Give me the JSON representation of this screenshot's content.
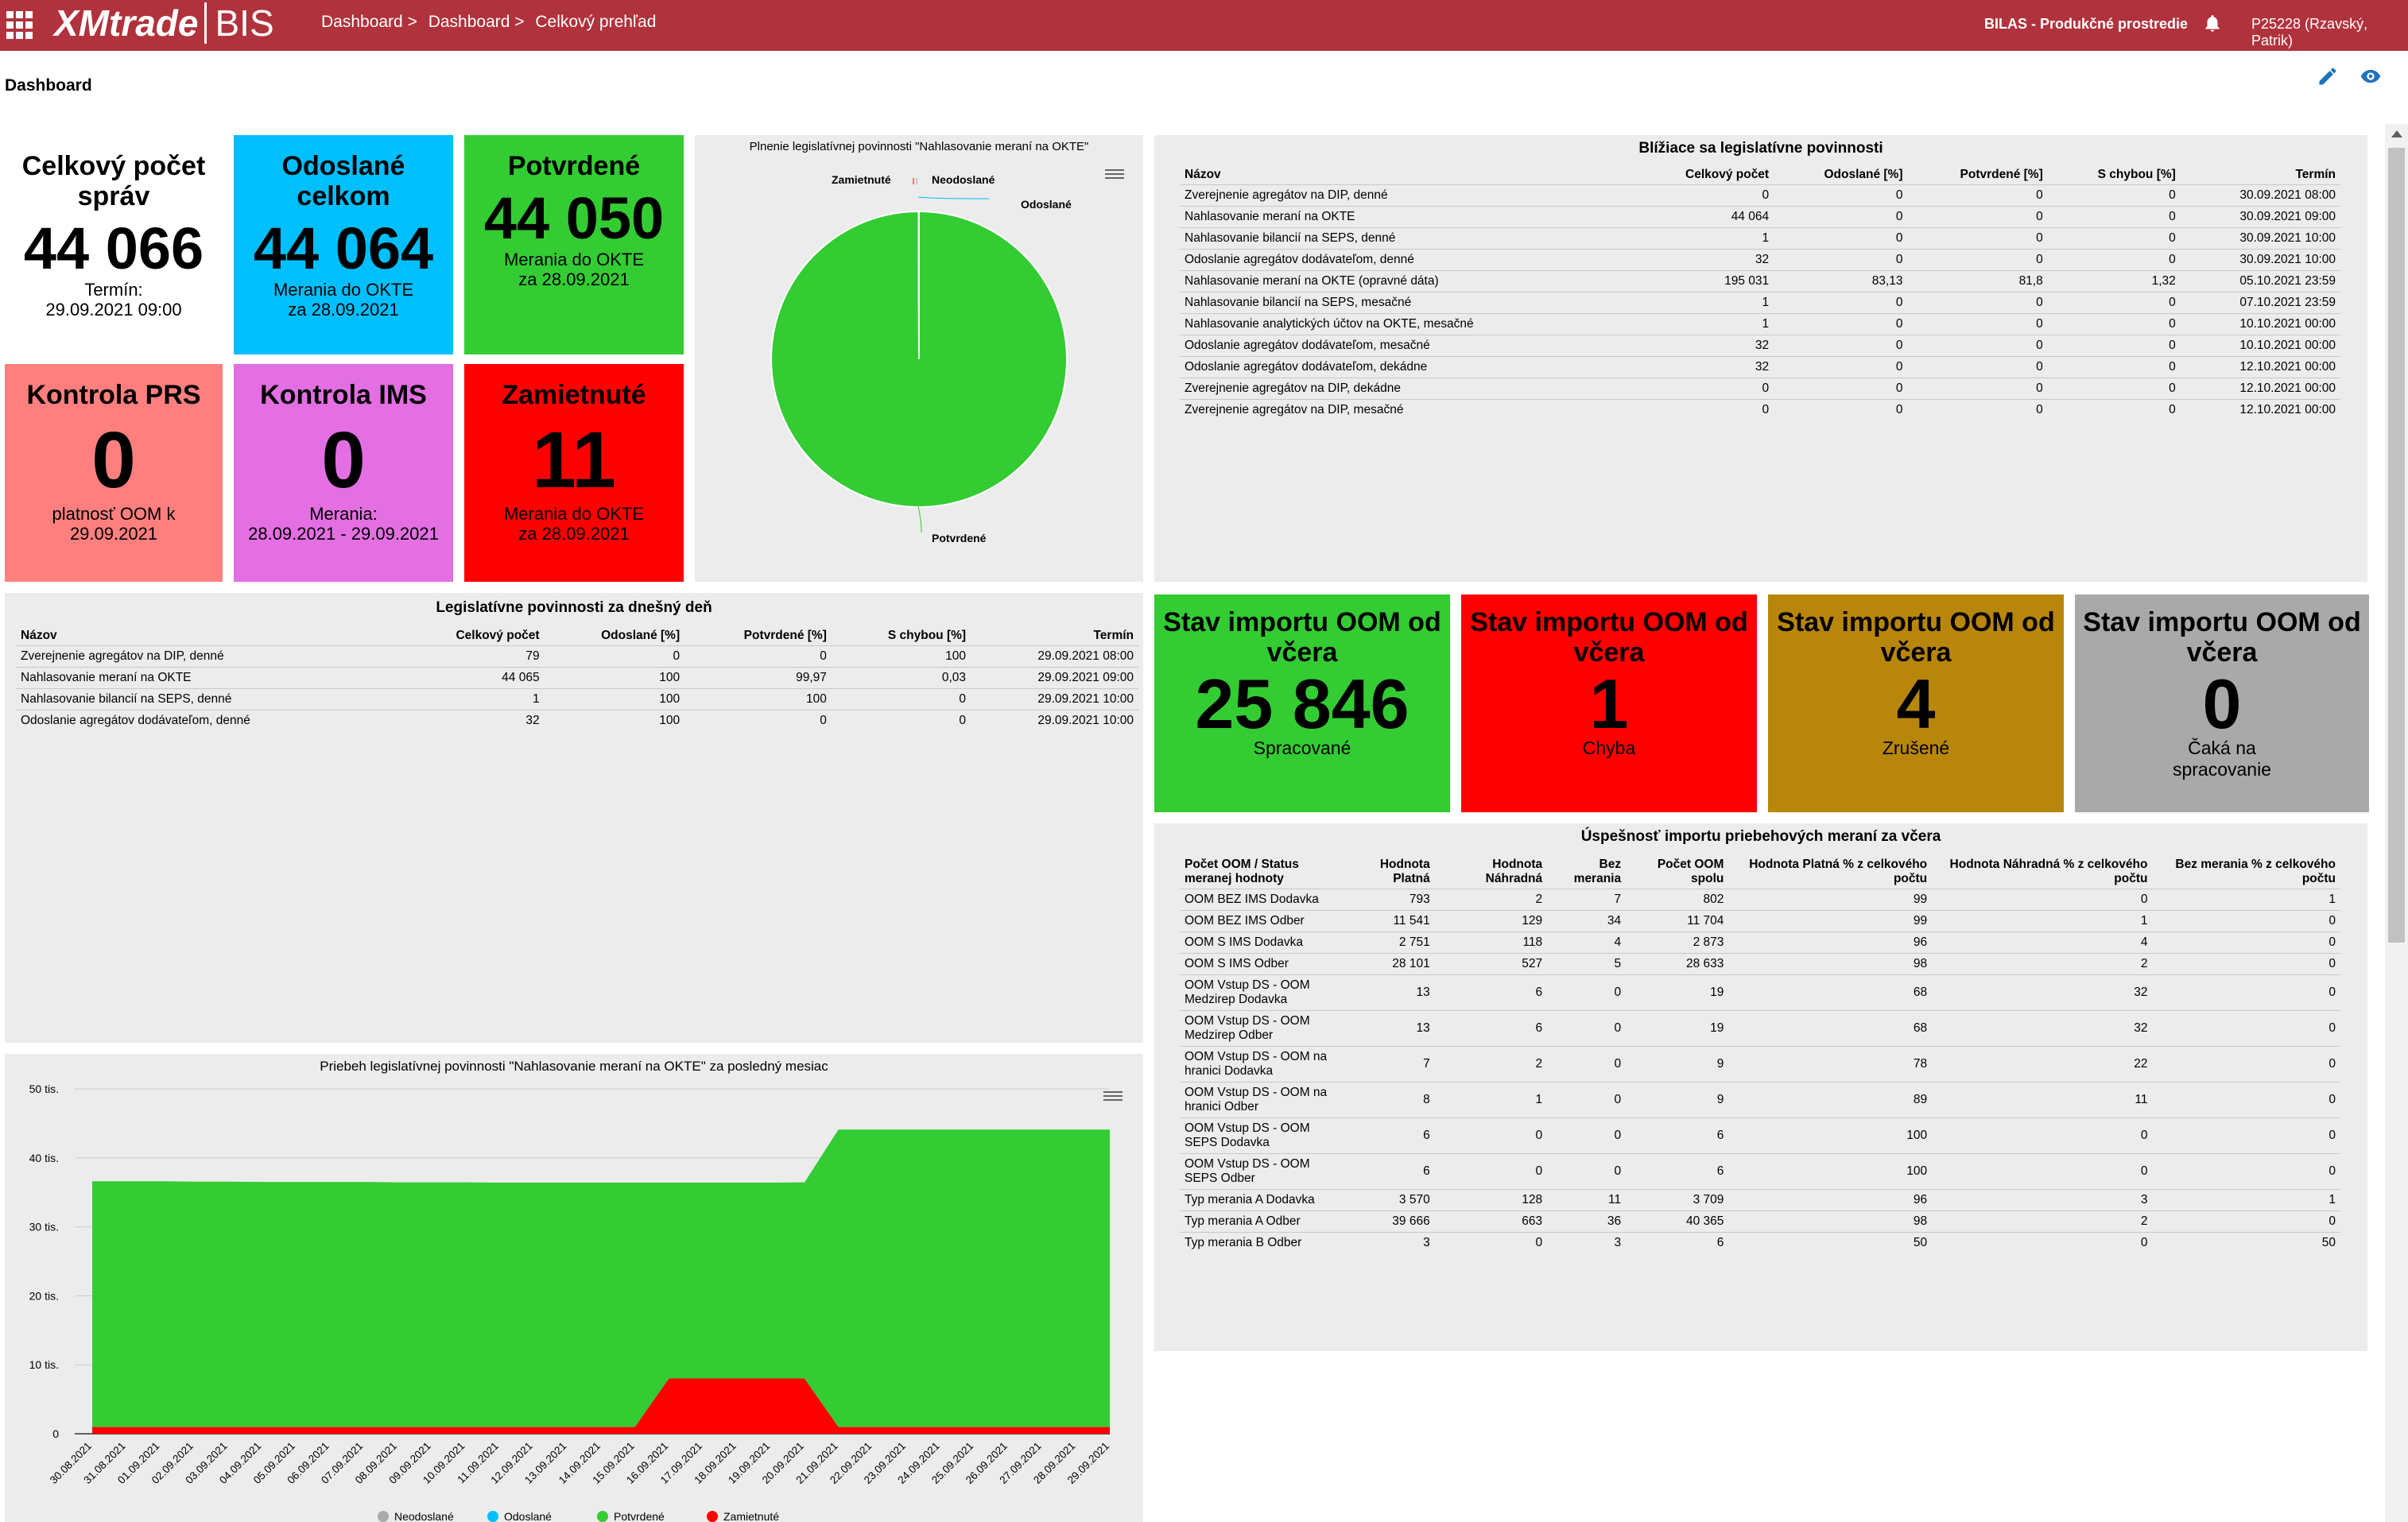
{
  "header": {
    "logo_brand": "XMtrade",
    "logo_product": "BIS",
    "breadcrumb": [
      "Dashboard >",
      "Dashboard >",
      "Celkový prehľad"
    ],
    "environment": "BILAS - Produkčné prostredie",
    "user": "P25228 (Rzavský, Patrik)"
  },
  "page": {
    "title": "Dashboard"
  },
  "tiles": [
    {
      "title": "Celkový počet správ",
      "value": "44 066",
      "sub1": "Termín:",
      "sub2": "29.09.2021 09:00",
      "color": "#ffffff"
    },
    {
      "title": "Odoslané celkom",
      "value": "44 064",
      "sub1": "Merania do OKTE",
      "sub2": "za 28.09.2021",
      "color": "#00bfff"
    },
    {
      "title": "Potvrdené",
      "value": "44 050",
      "sub1": "Merania do OKTE",
      "sub2": "za 28.09.2021",
      "color": "#33cc33"
    },
    {
      "title": "Kontrola PRS",
      "value": "0",
      "sub1": "platnosť OOM k",
      "sub2": "29.09.2021",
      "color": "#ff7f7f"
    },
    {
      "title": "Kontrola IMS",
      "value": "0",
      "sub1": "Merania:",
      "sub2": "28.09.2021 - 29.09.2021",
      "color": "#e36fe3"
    },
    {
      "title": "Zamietnuté",
      "value": "11",
      "sub1": "Merania do OKTE",
      "sub2": "za 28.09.2021",
      "color": "#ff0000"
    }
  ],
  "pie": {
    "title": "Plnenie legislatívnej povinnosti \"Nahlasovanie meraní na OKTE\"",
    "labels": [
      "Zamietnuté",
      "Neodoslané",
      "Odoslané",
      "Potvrdené"
    ]
  },
  "upcoming": {
    "title": "Blížiace sa legislatívne povinnosti",
    "columns": [
      "Názov",
      "Celkový počet",
      "Odoslané [%]",
      "Potvrdené [%]",
      "S chybou [%]",
      "Termín"
    ],
    "rows": [
      [
        "Zverejnenie agregátov na DIP, denné",
        "0",
        "0",
        "0",
        "0",
        "30.09.2021 08:00"
      ],
      [
        "Nahlasovanie meraní na OKTE",
        "44 064",
        "0",
        "0",
        "0",
        "30.09.2021 09:00"
      ],
      [
        "Nahlasovanie bilancií na SEPS, denné",
        "1",
        "0",
        "0",
        "0",
        "30.09.2021 10:00"
      ],
      [
        "Odoslanie agregátov dodávateľom, denné",
        "32",
        "0",
        "0",
        "0",
        "30.09.2021 10:00"
      ],
      [
        "Nahlasovanie meraní na OKTE (opravné dáta)",
        "195 031",
        "83,13",
        "81,8",
        "1,32",
        "05.10.2021 23:59"
      ],
      [
        "Nahlasovanie bilancií na SEPS, mesačné",
        "1",
        "0",
        "0",
        "0",
        "07.10.2021 23:59"
      ],
      [
        "Nahlasovanie analytických účtov na OKTE, mesačné",
        "1",
        "0",
        "0",
        "0",
        "10.10.2021 00:00"
      ],
      [
        "Odoslanie agregátov dodávateľom, mesačné",
        "32",
        "0",
        "0",
        "0",
        "10.10.2021 00:00"
      ],
      [
        "Odoslanie agregátov dodávateľom, dekádne",
        "32",
        "0",
        "0",
        "0",
        "12.10.2021 00:00"
      ],
      [
        "Zverejnenie agregátov na DIP, dekádne",
        "0",
        "0",
        "0",
        "0",
        "12.10.2021 00:00"
      ],
      [
        "Zverejnenie agregátov na DIP, mesačné",
        "0",
        "0",
        "0",
        "0",
        "12.10.2021 00:00"
      ]
    ]
  },
  "today": {
    "title": "Legislatívne povinnosti za dnešný deň",
    "columns": [
      "Názov",
      "Celkový počet",
      "Odoslané [%]",
      "Potvrdené [%]",
      "S chybou [%]",
      "Termín"
    ],
    "rows": [
      [
        "Zverejnenie agregátov na DIP, denné",
        "79",
        "0",
        "0",
        "100",
        "29.09.2021 08:00"
      ],
      [
        "Nahlasovanie meraní na OKTE",
        "44 065",
        "100",
        "99,97",
        "0,03",
        "29.09.2021 09:00"
      ],
      [
        "Nahlasovanie bilancií na SEPS, denné",
        "1",
        "100",
        "100",
        "0",
        "29.09.2021 10:00"
      ],
      [
        "Odoslanie agregátov dodávateľom, denné",
        "32",
        "100",
        "0",
        "0",
        "29.09.2021 10:00"
      ]
    ]
  },
  "import_tiles": [
    {
      "title": "Stav importu OOM od včera",
      "value": "25 846",
      "sub": "Spracované",
      "color": "#33cc33"
    },
    {
      "title": "Stav importu OOM od včera",
      "value": "1",
      "sub": "Chyba",
      "color": "#ff0000"
    },
    {
      "title": "Stav importu OOM od včera",
      "value": "4",
      "sub": "Zrušené",
      "color": "#b8860b"
    },
    {
      "title": "Stav importu OOM od včera",
      "value": "0",
      "sub": "Čaká na spracovanie",
      "color": "#a9a9a9"
    }
  ],
  "success": {
    "title": "Úspešnosť importu priebehových meraní za včera",
    "columns": [
      "Počet OOM / Status meranej hodnoty",
      "Hodnota Platná",
      "Hodnota Náhradná",
      "Bez merania",
      "Počet OOM spolu",
      "Hodnota Platná % z celkového počtu",
      "Hodnota Náhradná % z celkového počtu",
      "Bez merania % z celkového počtu"
    ],
    "rows": [
      [
        "OOM BEZ IMS Dodavka",
        "793",
        "2",
        "7",
        "802",
        "99",
        "0",
        "1"
      ],
      [
        "OOM BEZ IMS Odber",
        "11 541",
        "129",
        "34",
        "11 704",
        "99",
        "1",
        "0"
      ],
      [
        "OOM S IMS Dodavka",
        "2 751",
        "118",
        "4",
        "2 873",
        "96",
        "4",
        "0"
      ],
      [
        "OOM S IMS Odber",
        "28 101",
        "527",
        "5",
        "28 633",
        "98",
        "2",
        "0"
      ],
      [
        "OOM Vstup DS - OOM Medzirep Dodavka",
        "13",
        "6",
        "0",
        "19",
        "68",
        "32",
        "0"
      ],
      [
        "OOM Vstup DS - OOM Medzirep Odber",
        "13",
        "6",
        "0",
        "19",
        "68",
        "32",
        "0"
      ],
      [
        "OOM Vstup DS - OOM na hranici Dodavka",
        "7",
        "2",
        "0",
        "9",
        "78",
        "22",
        "0"
      ],
      [
        "OOM Vstup DS - OOM na hranici Odber",
        "8",
        "1",
        "0",
        "9",
        "89",
        "11",
        "0"
      ],
      [
        "OOM Vstup DS - OOM SEPS Dodavka",
        "6",
        "0",
        "0",
        "6",
        "100",
        "0",
        "0"
      ],
      [
        "OOM Vstup DS - OOM SEPS Odber",
        "6",
        "0",
        "0",
        "6",
        "100",
        "0",
        "0"
      ],
      [
        "Typ merania A Dodavka",
        "3 570",
        "128",
        "11",
        "3 709",
        "96",
        "3",
        "1"
      ],
      [
        "Typ merania A Odber",
        "39 666",
        "663",
        "36",
        "40 365",
        "98",
        "2",
        "0"
      ],
      [
        "Typ merania B Odber",
        "3",
        "0",
        "3",
        "6",
        "50",
        "0",
        "50"
      ]
    ]
  },
  "chart_data": [
    {
      "type": "pie",
      "title": "Plnenie legislatívnej povinnosti \"Nahlasovanie meraní na OKTE\"",
      "categories": [
        "Potvrdené",
        "Odoslané",
        "Neodoslané",
        "Zamietnuté"
      ],
      "values": [
        44050,
        3,
        2,
        11
      ],
      "colors": [
        "#33cc33",
        "#00bfff",
        "#a9a9a9",
        "#ff0000"
      ]
    },
    {
      "type": "area",
      "title": "Priebeh legislatívnej povinnosti \"Nahlasovanie meraní na OKTE\" za posledný mesiac",
      "categories": [
        "30.08.2021",
        "31.08.2021",
        "01.09.2021",
        "02.09.2021",
        "03.09.2021",
        "04.09.2021",
        "05.09.2021",
        "06.09.2021",
        "07.09.2021",
        "08.09.2021",
        "09.09.2021",
        "10.09.2021",
        "11.09.2021",
        "12.09.2021",
        "13.09.2021",
        "14.09.2021",
        "15.09.2021",
        "16.09.2021",
        "17.09.2021",
        "18.09.2021",
        "19.09.2021",
        "20.09.2021",
        "21.09.2021",
        "22.09.2021",
        "23.09.2021",
        "24.09.2021",
        "25.09.2021",
        "26.09.2021",
        "27.09.2021",
        "28.09.2021",
        "29.09.2021"
      ],
      "y_ticks": [
        "0",
        "10 tis.",
        "20 tis.",
        "30 tis.",
        "40 tis.",
        "50 tis."
      ],
      "ylim": [
        0,
        50000
      ],
      "stacked": true,
      "legend": "bottom",
      "series": [
        {
          "name": "Neodoslané",
          "color": "#a9a9a9",
          "values": [
            0,
            0,
            0,
            0,
            0,
            0,
            0,
            0,
            0,
            0,
            0,
            0,
            0,
            0,
            0,
            0,
            0,
            0,
            0,
            0,
            0,
            0,
            0,
            0,
            0,
            0,
            0,
            0,
            0,
            0,
            0
          ]
        },
        {
          "name": "Odoslané",
          "color": "#00bfff",
          "values": [
            0,
            0,
            0,
            0,
            0,
            0,
            0,
            0,
            0,
            0,
            0,
            0,
            0,
            0,
            0,
            0,
            0,
            0,
            0,
            0,
            0,
            0,
            0,
            0,
            0,
            0,
            0,
            0,
            0,
            0,
            0
          ]
        },
        {
          "name": "Zamietnuté",
          "color": "#ff0000",
          "values": [
            1000,
            1000,
            1000,
            1000,
            1000,
            1000,
            1000,
            1000,
            1000,
            1000,
            1000,
            1000,
            1000,
            1000,
            1000,
            1000,
            1000,
            8000,
            8000,
            8000,
            8000,
            8000,
            1000,
            1000,
            1000,
            1000,
            1000,
            1000,
            1000,
            1000,
            1000
          ]
        },
        {
          "name": "Potvrdené",
          "color": "#33cc33",
          "values": [
            35600,
            35600,
            35600,
            35550,
            35550,
            35500,
            35500,
            35500,
            35500,
            35450,
            35450,
            35450,
            35400,
            35400,
            35400,
            35400,
            35400,
            28400,
            28400,
            28400,
            28400,
            28450,
            43100,
            43100,
            43100,
            43100,
            43100,
            43100,
            43100,
            43100,
            43100
          ]
        }
      ]
    }
  ],
  "colors": {
    "brand": "#b0323c",
    "panel_bg": "#ececec"
  }
}
